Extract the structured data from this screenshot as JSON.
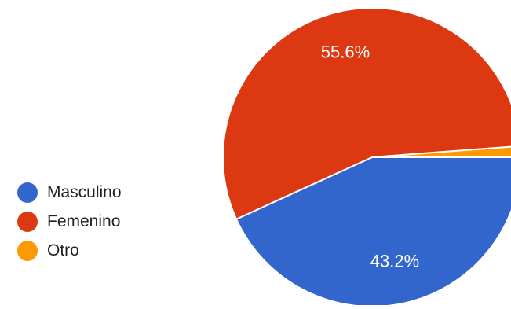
{
  "chart_data": {
    "type": "pie",
    "categories": [
      "Masculino",
      "Femenino",
      "Otro"
    ],
    "values": [
      43.2,
      55.6,
      1.2
    ],
    "labels": [
      "43.2%",
      "55.6%",
      ""
    ],
    "colors": [
      "#3366cc",
      "#dc3912",
      "#ff9900"
    ],
    "legend_position": "left",
    "start_direction": "east-clockwise"
  }
}
